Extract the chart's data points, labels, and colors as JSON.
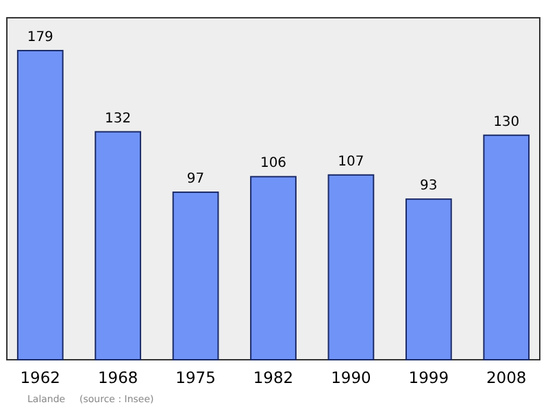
{
  "chart_data": {
    "type": "bar",
    "categories": [
      "1962",
      "1968",
      "1975",
      "1982",
      "1990",
      "1999",
      "2008"
    ],
    "values": [
      179,
      132,
      97,
      106,
      107,
      93,
      130
    ],
    "color": "#7093f8",
    "ylim": [
      0,
      198
    ],
    "data_labels": true,
    "annotations": [
      "Lalande",
      "(source : Insee)"
    ]
  }
}
